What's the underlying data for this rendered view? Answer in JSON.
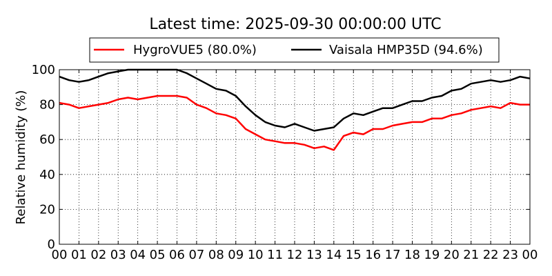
{
  "chart_data": {
    "type": "line",
    "title": "Latest time: 2025-09-30 00:00:00 UTC",
    "xlabel": "",
    "ylabel": "Relative humidity (%)",
    "ylim": [
      0,
      100
    ],
    "yticks": [
      "0",
      "20",
      "40",
      "60",
      "80",
      "100"
    ],
    "xlim": [
      0,
      24
    ],
    "xticks": [
      "00",
      "01",
      "02",
      "03",
      "04",
      "05",
      "06",
      "07",
      "08",
      "09",
      "10",
      "11",
      "12",
      "13",
      "14",
      "15",
      "16",
      "17",
      "18",
      "19",
      "20",
      "21",
      "22",
      "23",
      "00"
    ],
    "grid": true,
    "legend_position": "top-center",
    "x": [
      0,
      0.5,
      1,
      1.5,
      2,
      2.5,
      3,
      3.5,
      4,
      4.5,
      5,
      5.5,
      6,
      6.5,
      7,
      7.5,
      8,
      8.5,
      9,
      9.5,
      10,
      10.5,
      11,
      11.5,
      12,
      12.5,
      13,
      13.5,
      14,
      14.5,
      15,
      15.5,
      16,
      16.5,
      17,
      17.5,
      18,
      18.5,
      19,
      19.5,
      20,
      20.5,
      21,
      21.5,
      22,
      22.5,
      23,
      23.5,
      24
    ],
    "series": [
      {
        "name": "HygroVUE5 (80.0%)",
        "color": "#ff0000",
        "values": [
          81,
          80,
          78,
          79,
          80,
          81,
          83,
          84,
          83,
          84,
          85,
          85,
          85,
          84,
          80,
          78,
          75,
          74,
          72,
          66,
          63,
          60,
          59,
          58,
          58,
          57,
          55,
          56,
          54,
          62,
          64,
          63,
          66,
          66,
          68,
          69,
          70,
          70,
          72,
          72,
          74,
          75,
          77,
          78,
          79,
          78,
          81,
          80,
          80
        ]
      },
      {
        "name": "Vaisala HMP35D (94.6%)",
        "color": "#000000",
        "values": [
          96,
          94,
          93,
          94,
          96,
          98,
          99,
          100,
          100,
          100,
          100,
          100,
          100,
          98,
          95,
          92,
          89,
          88,
          85,
          79,
          74,
          70,
          68,
          67,
          69,
          67,
          65,
          66,
          67,
          72,
          75,
          74,
          76,
          78,
          78,
          80,
          82,
          82,
          84,
          85,
          88,
          89,
          92,
          93,
          94,
          93,
          94,
          96,
          95
        ]
      }
    ]
  }
}
